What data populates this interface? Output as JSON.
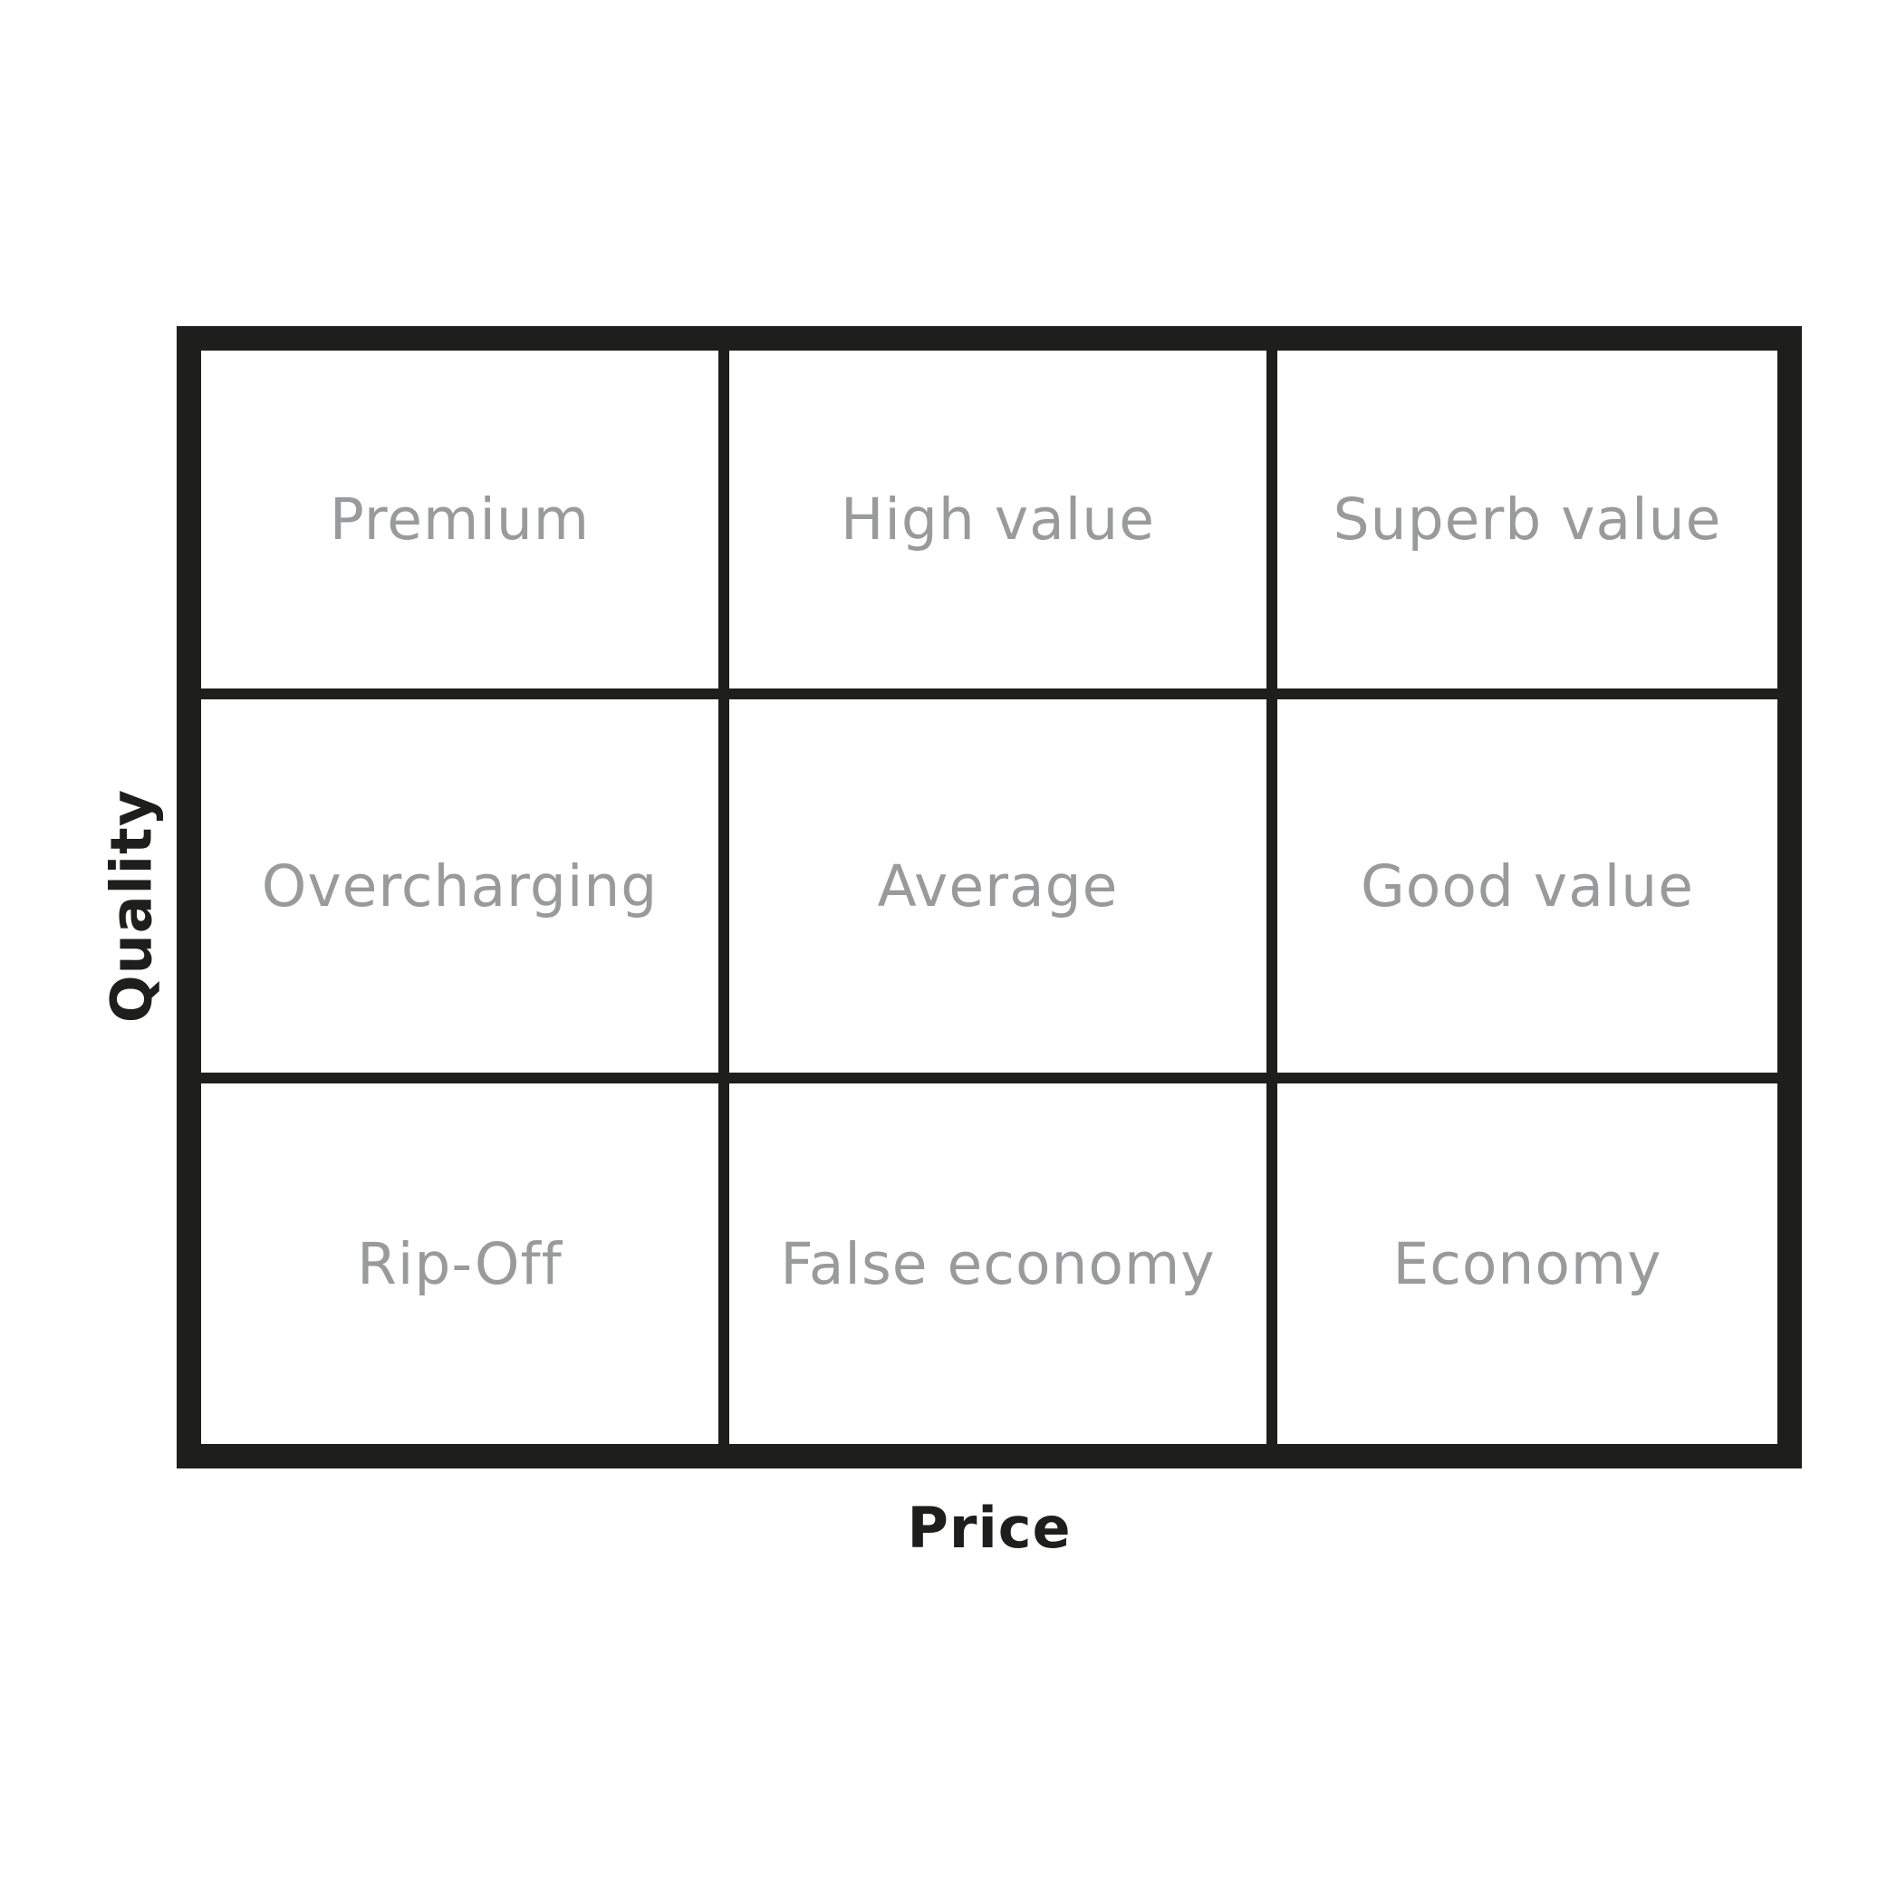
{
  "diagram": {
    "x_axis_label": "Price",
    "y_axis_label": "Quality",
    "rows": [
      [
        "Premium",
        "High value",
        "Superb value"
      ],
      [
        "Overcharging",
        "Average",
        "Good value"
      ],
      [
        "Rip-Off",
        "False economy",
        "Economy"
      ]
    ]
  },
  "colors": {
    "grid_lines": "#1e1e1c",
    "cell_text": "#999a9b",
    "axis_text": "#1e1e1c",
    "background": "#ffffff"
  }
}
